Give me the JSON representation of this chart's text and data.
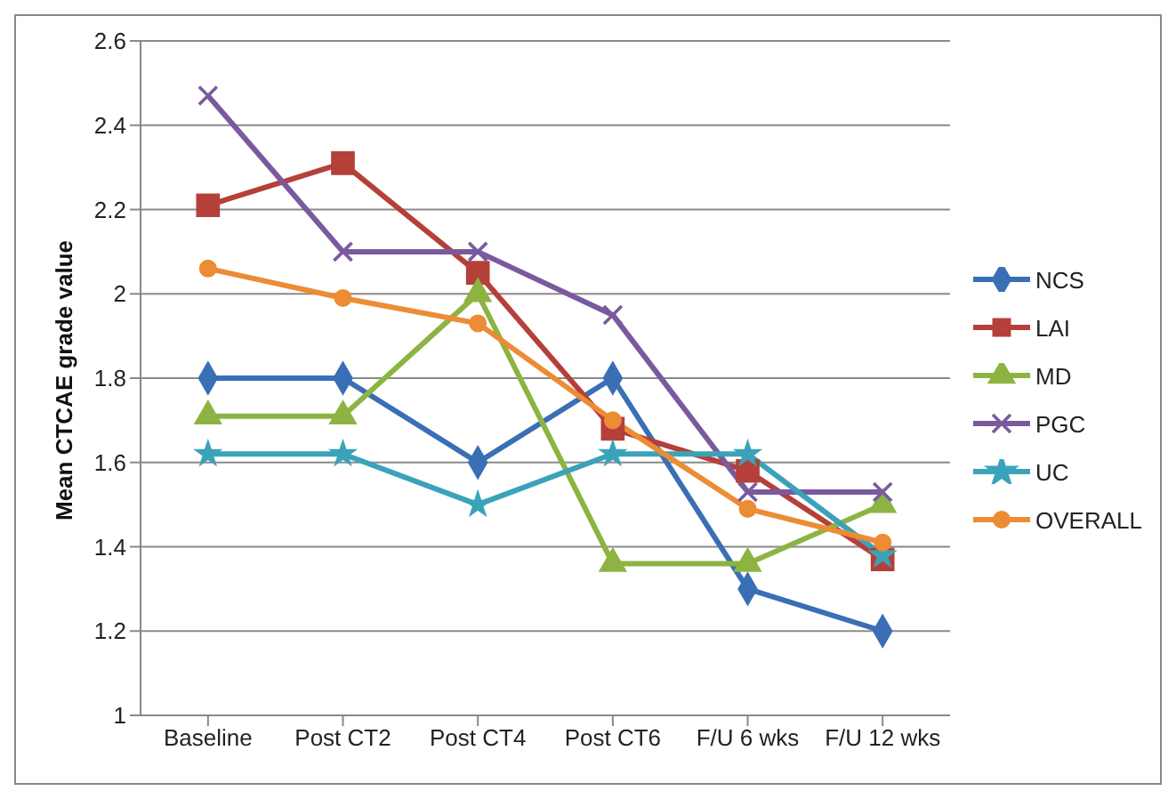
{
  "chart_data": {
    "type": "line",
    "ylabel": "Mean CTCAE grade value",
    "categories": [
      "Baseline",
      "Post CT2",
      "Post CT4",
      "Post CT6",
      "F/U 6 wks",
      "F/U 12 wks"
    ],
    "series": [
      {
        "name": "NCS",
        "color": "#3a6fb5",
        "marker": "diamond",
        "values": [
          1.8,
          1.8,
          1.6,
          1.8,
          1.3,
          1.2
        ]
      },
      {
        "name": "LAI",
        "color": "#b5403a",
        "marker": "square",
        "values": [
          2.21,
          2.31,
          2.05,
          1.68,
          1.58,
          1.37
        ]
      },
      {
        "name": "MD",
        "color": "#8db443",
        "marker": "triangle",
        "values": [
          1.71,
          1.71,
          2.0,
          1.36,
          1.36,
          1.5
        ]
      },
      {
        "name": "PGC",
        "color": "#7a5a9f",
        "marker": "cross",
        "values": [
          2.47,
          2.1,
          2.1,
          1.95,
          1.53,
          1.53
        ]
      },
      {
        "name": "UC",
        "color": "#3ba3b9",
        "marker": "star",
        "values": [
          1.62,
          1.62,
          1.5,
          1.62,
          1.62,
          1.38
        ]
      },
      {
        "name": "OVERALL",
        "color": "#ec8c34",
        "marker": "circle",
        "values": [
          2.06,
          1.99,
          1.93,
          1.7,
          1.49,
          1.41
        ]
      }
    ],
    "ylim": [
      1,
      2.6
    ],
    "yticks": [
      1,
      1.2,
      1.4,
      1.6,
      1.8,
      2,
      2.2,
      2.4,
      2.6
    ],
    "grid": "y",
    "legend": "right",
    "line_style": "solid"
  }
}
